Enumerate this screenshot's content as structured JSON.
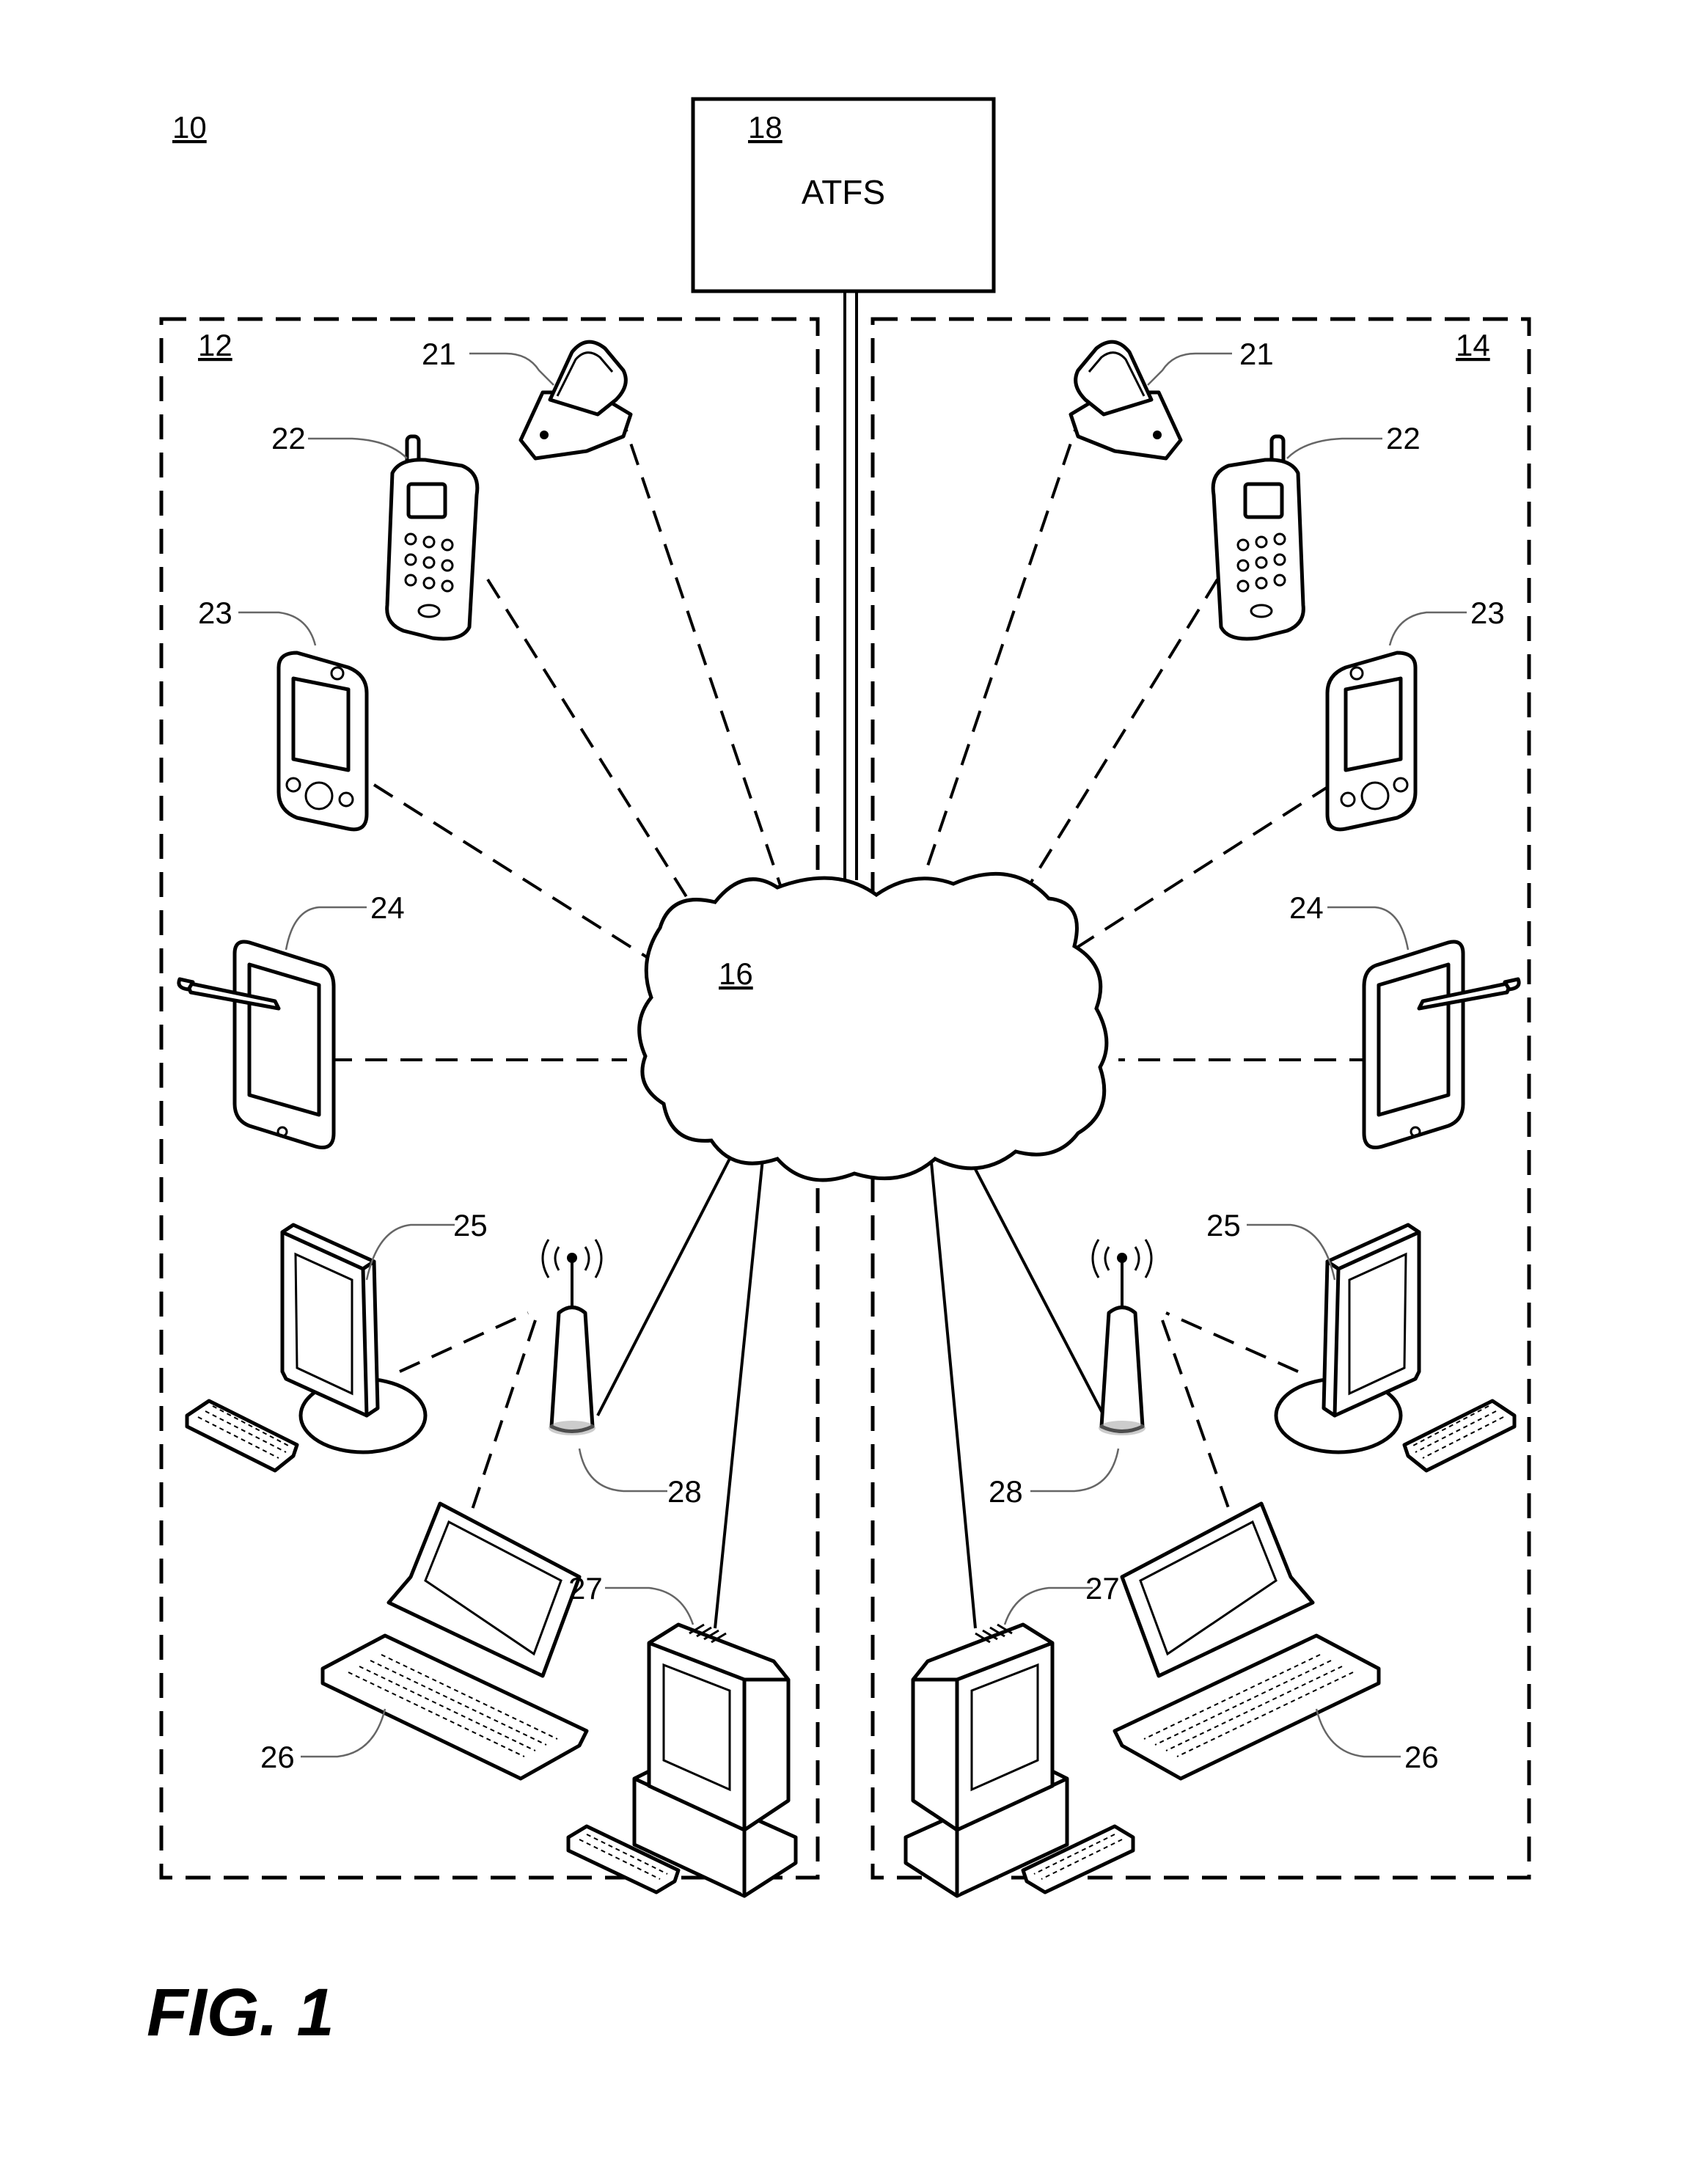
{
  "system_label": "10",
  "server": {
    "label": "18",
    "text": "ATFS"
  },
  "network": {
    "label": "16"
  },
  "regions": [
    {
      "label": "12"
    },
    {
      "label": "14"
    }
  ],
  "devices": {
    "flip_phone": "21",
    "cell_phone": "22",
    "pda": "23",
    "tablet": "24",
    "desktop": "25",
    "laptop": "26",
    "workstation": "27",
    "access_point": "28"
  },
  "figure_caption": "FIG. 1"
}
